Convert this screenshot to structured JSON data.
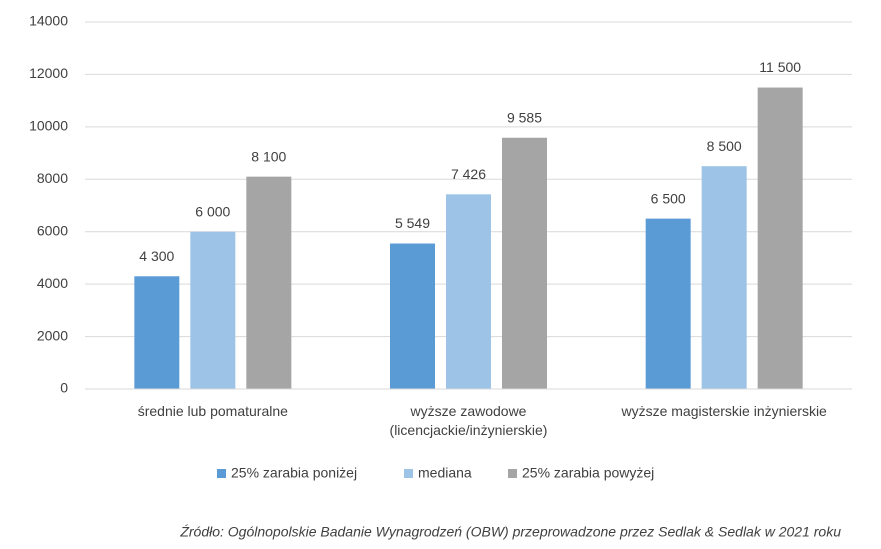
{
  "chart_data": {
    "type": "bar",
    "categories": [
      "średnie lub pomaturalne",
      "wyższe zawodowe (licencjackie/inżynierskie)",
      "wyższe magisterskie inżynierskie"
    ],
    "series": [
      {
        "name": "25% zarabia poniżej",
        "color": "#5b9bd5",
        "values": [
          4300,
          5549,
          6500
        ],
        "value_labels": [
          "4 300",
          "5 549",
          "6 500"
        ]
      },
      {
        "name": "mediana",
        "color": "#9dc3e6",
        "values": [
          6000,
          7426,
          8500
        ],
        "value_labels": [
          "6 000",
          "7 426",
          "8 500"
        ]
      },
      {
        "name": "25% zarabia powyżej",
        "color": "#a5a5a5",
        "values": [
          8100,
          9585,
          11500
        ],
        "value_labels": [
          "8 100",
          "9 585",
          "11 500"
        ]
      }
    ],
    "ylim": [
      0,
      14000
    ],
    "yticks": [
      0,
      2000,
      4000,
      6000,
      8000,
      10000,
      12000,
      14000
    ],
    "grid": true,
    "legend": "bottom",
    "source": "Źródło: Ogólnopolskie Badanie Wynagrodzeń (OBW) przeprowadzone przez Sedlak & Sedlak w 2021 roku"
  }
}
